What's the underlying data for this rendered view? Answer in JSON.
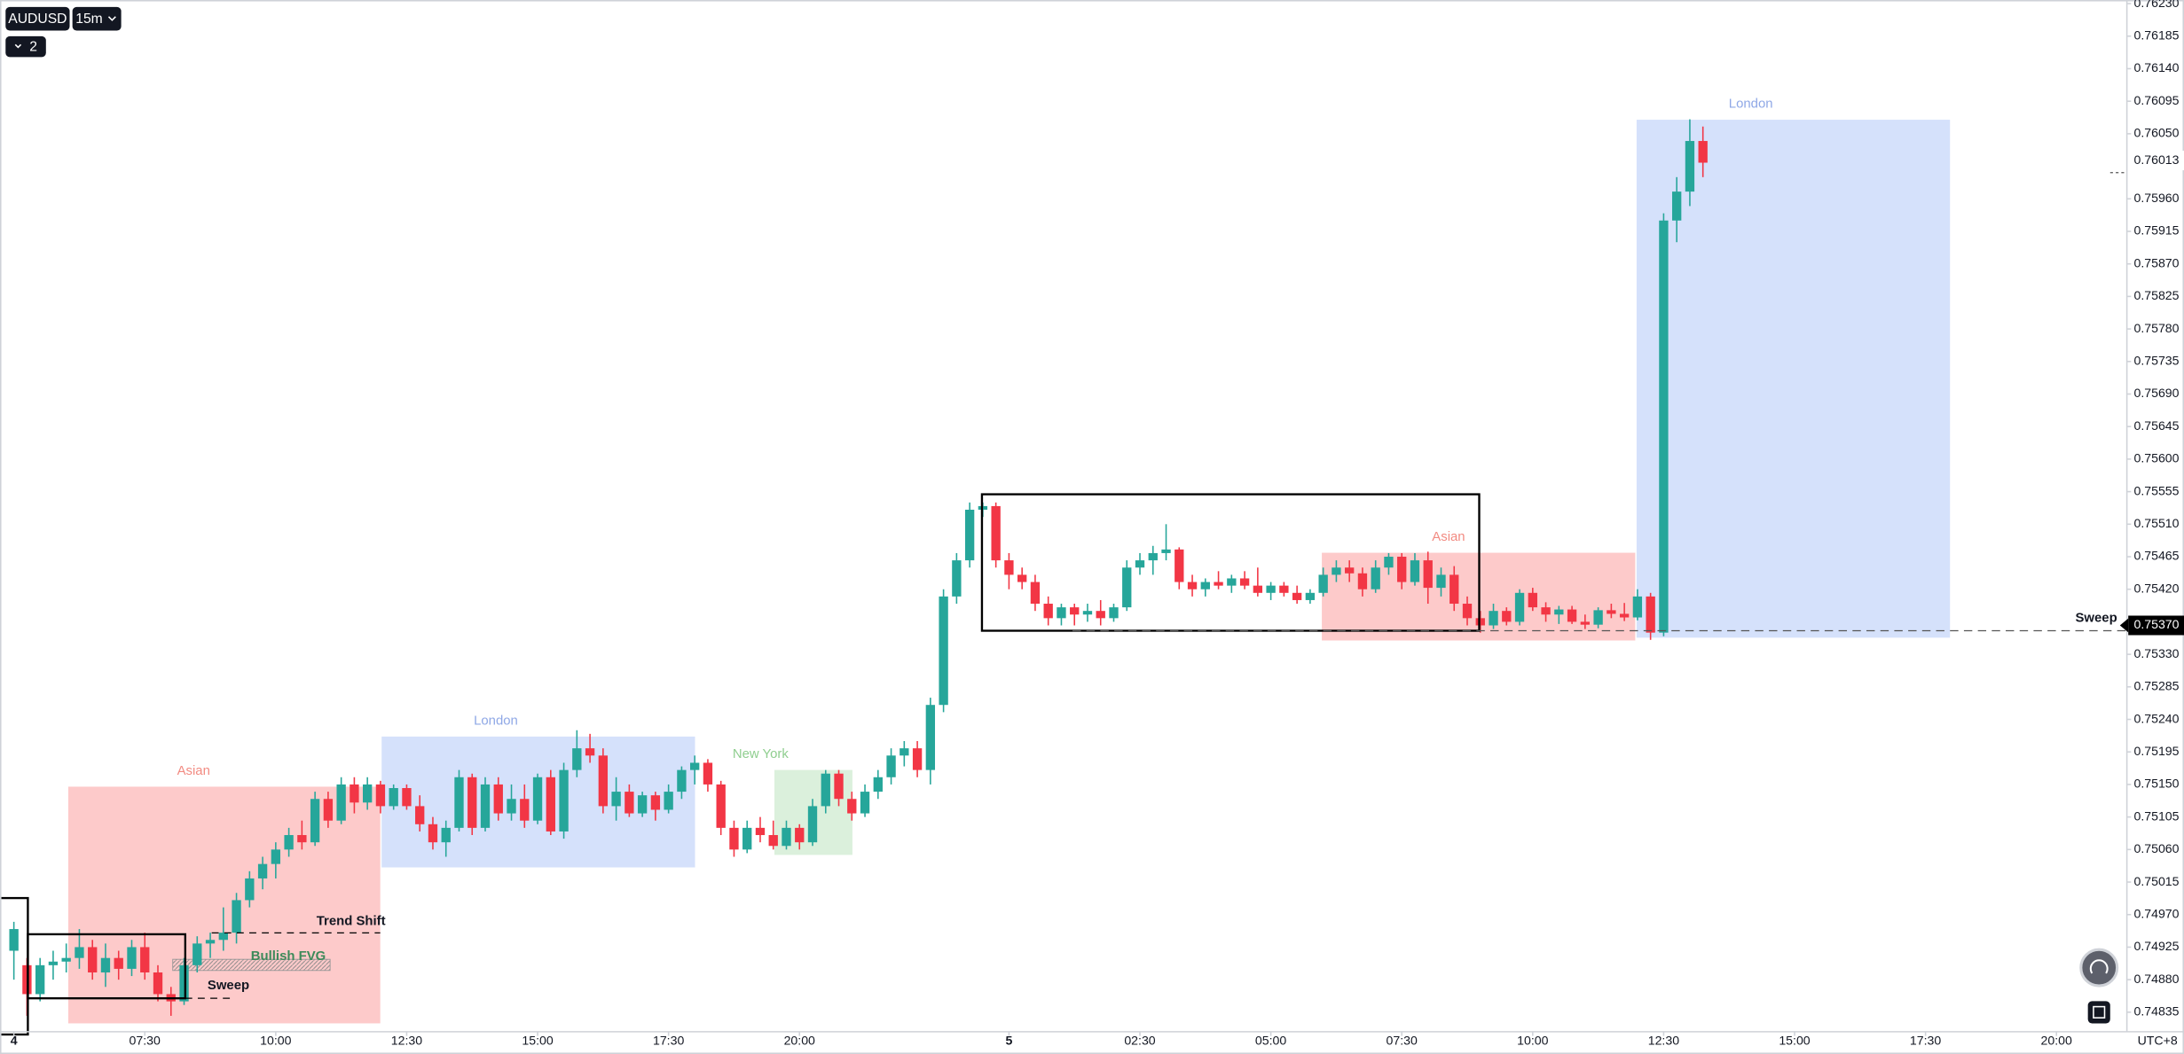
{
  "chart_data": {
    "type": "candlestick",
    "symbol": "AUDUSD",
    "interval": "15m",
    "indicator_count": "2",
    "timezone": "UTC+8",
    "up_color": "#26a69a",
    "down_color": "#f23645",
    "grid": false,
    "xlim": [
      -1.06,
      161.38
    ],
    "ylim": [
      0.74808,
      0.76235
    ],
    "xticks": [
      {
        "value": 0,
        "label": "4"
      },
      {
        "value": 10,
        "label": "07:30"
      },
      {
        "value": 20,
        "label": "10:00"
      },
      {
        "value": 30,
        "label": "12:30"
      },
      {
        "value": 40,
        "label": "15:00"
      },
      {
        "value": 50,
        "label": "17:30"
      },
      {
        "value": 60,
        "label": "20:00"
      },
      {
        "value": 76,
        "label": "5"
      },
      {
        "value": 86,
        "label": "02:30"
      },
      {
        "value": 96,
        "label": "05:00"
      },
      {
        "value": 106,
        "label": "07:30"
      },
      {
        "value": 116,
        "label": "10:00"
      },
      {
        "value": 126,
        "label": "12:30"
      },
      {
        "value": 136,
        "label": "15:00"
      },
      {
        "value": 146,
        "label": "17:30"
      },
      {
        "value": 156,
        "label": "20:00"
      }
    ],
    "yticks": [
      {
        "value": 0.7623,
        "label": "0.76230"
      },
      0.76185,
      {
        "value": 0.7614,
        "label": "0.76140"
      },
      0.76095,
      {
        "value": 0.7605,
        "label": "0.76050"
      },
      {
        "value": 0.7596,
        "label": "0.75960"
      },
      0.75915,
      {
        "value": 0.7587,
        "label": "0.75870"
      },
      0.75825,
      {
        "value": 0.7578,
        "label": "0.75780"
      },
      0.75735,
      {
        "value": 0.7569,
        "label": "0.75690"
      },
      0.75645,
      {
        "value": 0.756,
        "label": "0.75600"
      },
      0.75555,
      {
        "value": 0.7551,
        "label": "0.75510"
      },
      0.75465,
      {
        "value": 0.7542,
        "label": "0.75420"
      },
      {
        "value": 0.7533,
        "label": "0.75330"
      },
      0.75285,
      {
        "value": 0.7524,
        "label": "0.75240"
      },
      0.75195,
      {
        "value": 0.7515,
        "label": "0.75150"
      },
      0.75105,
      {
        "value": 0.7506,
        "label": "0.75060"
      },
      0.75015,
      {
        "value": 0.7497,
        "label": "0.74970"
      },
      0.74925,
      {
        "value": 0.7488,
        "label": "0.74880"
      },
      0.74835
    ],
    "price_labels": [
      0.76013,
      {
        "value": 0.7537,
        "label": "0.75370"
      }
    ],
    "annotations": {
      "sessions": [
        "Asian",
        "London",
        "New York",
        "Asian",
        "London"
      ],
      "trend_shift": "Trend Shift",
      "fvg": "Bullish FVG",
      "sweeps": [
        "Sweep",
        "Sweep"
      ]
    },
    "ohlc": [
      [
        0.7492,
        0.7496,
        0.7488,
        0.7495
      ],
      [
        0.749,
        0.7491,
        0.7483,
        0.7486
      ],
      [
        0.7486,
        0.7491,
        0.7485,
        0.749
      ],
      [
        0.749,
        0.7492,
        0.7488,
        0.74905
      ],
      [
        0.74905,
        0.7493,
        0.7489,
        0.7491
      ],
      [
        0.7491,
        0.7495,
        0.74895,
        0.74925
      ],
      [
        0.74925,
        0.74935,
        0.7488,
        0.7489
      ],
      [
        0.7489,
        0.7493,
        0.7487,
        0.7491
      ],
      [
        0.7491,
        0.7492,
        0.7488,
        0.74895
      ],
      [
        0.74895,
        0.74935,
        0.74885,
        0.74925
      ],
      [
        0.74925,
        0.74945,
        0.7488,
        0.7489
      ],
      [
        0.7489,
        0.749,
        0.7485,
        0.7486
      ],
      [
        0.7486,
        0.7487,
        0.7483,
        0.7485
      ],
      [
        0.7485,
        0.7491,
        0.74845,
        0.749
      ],
      [
        0.749,
        0.7494,
        0.7489,
        0.7493
      ],
      [
        0.7493,
        0.74945,
        0.7491,
        0.74935
      ],
      [
        0.74935,
        0.7498,
        0.7492,
        0.74945
      ],
      [
        0.74945,
        0.75,
        0.7493,
        0.7499
      ],
      [
        0.7499,
        0.7503,
        0.7498,
        0.7502
      ],
      [
        0.7502,
        0.7505,
        0.75005,
        0.7504
      ],
      [
        0.7504,
        0.7507,
        0.7502,
        0.7506
      ],
      [
        0.7506,
        0.7509,
        0.7505,
        0.7508
      ],
      [
        0.7508,
        0.751,
        0.7506,
        0.7507
      ],
      [
        0.7507,
        0.7514,
        0.75065,
        0.7513
      ],
      [
        0.7513,
        0.7514,
        0.7509,
        0.751
      ],
      [
        0.751,
        0.7516,
        0.75095,
        0.7515
      ],
      [
        0.7515,
        0.7516,
        0.7511,
        0.75125
      ],
      [
        0.75125,
        0.7516,
        0.75115,
        0.7515
      ],
      [
        0.7515,
        0.75155,
        0.7511,
        0.7512
      ],
      [
        0.7512,
        0.7515,
        0.75115,
        0.75145
      ],
      [
        0.75145,
        0.7515,
        0.75115,
        0.7512
      ],
      [
        0.7512,
        0.75135,
        0.75085,
        0.75095
      ],
      [
        0.75095,
        0.75105,
        0.7506,
        0.7507
      ],
      [
        0.7507,
        0.751,
        0.7505,
        0.7509
      ],
      [
        0.7509,
        0.7517,
        0.75085,
        0.7516
      ],
      [
        0.7516,
        0.75165,
        0.7508,
        0.7509
      ],
      [
        0.7509,
        0.7516,
        0.75085,
        0.7515
      ],
      [
        0.7515,
        0.7516,
        0.751,
        0.7511
      ],
      [
        0.7511,
        0.7515,
        0.751,
        0.7513
      ],
      [
        0.7513,
        0.7515,
        0.7509,
        0.751
      ],
      [
        0.751,
        0.75165,
        0.75095,
        0.7516
      ],
      [
        0.7516,
        0.7517,
        0.7508,
        0.75085
      ],
      [
        0.75085,
        0.7518,
        0.75075,
        0.7517
      ],
      [
        0.7517,
        0.75225,
        0.7516,
        0.752
      ],
      [
        0.752,
        0.7522,
        0.7518,
        0.7519
      ],
      [
        0.7519,
        0.752,
        0.7511,
        0.7512
      ],
      [
        0.7512,
        0.7516,
        0.751,
        0.7514
      ],
      [
        0.7514,
        0.7515,
        0.75105,
        0.7511
      ],
      [
        0.7511,
        0.7514,
        0.75105,
        0.75135
      ],
      [
        0.75135,
        0.7514,
        0.751,
        0.75115
      ],
      [
        0.75115,
        0.7515,
        0.7511,
        0.7514
      ],
      [
        0.7514,
        0.75175,
        0.7513,
        0.7517
      ],
      [
        0.7517,
        0.7519,
        0.7515,
        0.7518
      ],
      [
        0.7518,
        0.75185,
        0.7514,
        0.7515
      ],
      [
        0.7515,
        0.75155,
        0.7508,
        0.7509
      ],
      [
        0.7509,
        0.751,
        0.7505,
        0.7506
      ],
      [
        0.7506,
        0.751,
        0.75055,
        0.7509
      ],
      [
        0.7509,
        0.75105,
        0.7507,
        0.7508
      ],
      [
        0.7508,
        0.751,
        0.7506,
        0.75065
      ],
      [
        0.75065,
        0.751,
        0.7506,
        0.7509
      ],
      [
        0.7509,
        0.75095,
        0.7506,
        0.7507
      ],
      [
        0.7507,
        0.7513,
        0.75065,
        0.7512
      ],
      [
        0.7512,
        0.7517,
        0.7511,
        0.75165
      ],
      [
        0.75165,
        0.7517,
        0.7512,
        0.7513
      ],
      [
        0.7513,
        0.7514,
        0.751,
        0.7511
      ],
      [
        0.7511,
        0.7515,
        0.75105,
        0.7514
      ],
      [
        0.7514,
        0.7517,
        0.7513,
        0.7516
      ],
      [
        0.7516,
        0.752,
        0.7515,
        0.7519
      ],
      [
        0.7519,
        0.7521,
        0.75175,
        0.752
      ],
      [
        0.752,
        0.7521,
        0.7516,
        0.7517
      ],
      [
        0.7517,
        0.7527,
        0.7515,
        0.7526
      ],
      [
        0.7526,
        0.7542,
        0.7525,
        0.7541
      ],
      [
        0.7541,
        0.7547,
        0.754,
        0.7546
      ],
      [
        0.7546,
        0.7554,
        0.7545,
        0.7553
      ],
      [
        0.7553,
        0.7554,
        0.7552,
        0.75535
      ],
      [
        0.75535,
        0.7554,
        0.7545,
        0.7546
      ],
      [
        0.7546,
        0.7547,
        0.7542,
        0.7544
      ],
      [
        0.7544,
        0.7545,
        0.7542,
        0.7543
      ],
      [
        0.7543,
        0.7544,
        0.7539,
        0.754
      ],
      [
        0.754,
        0.7541,
        0.7537,
        0.7538
      ],
      [
        0.7538,
        0.754,
        0.7537,
        0.75395
      ],
      [
        0.75395,
        0.754,
        0.7537,
        0.75385
      ],
      [
        0.75385,
        0.754,
        0.75375,
        0.7539
      ],
      [
        0.7539,
        0.75405,
        0.7537,
        0.7538
      ],
      [
        0.7538,
        0.754,
        0.75375,
        0.75395
      ],
      [
        0.75395,
        0.7546,
        0.7539,
        0.7545
      ],
      [
        0.7545,
        0.7547,
        0.7544,
        0.7546
      ],
      [
        0.7546,
        0.7548,
        0.7544,
        0.7547
      ],
      [
        0.7547,
        0.7551,
        0.7546,
        0.75475
      ],
      [
        0.75475,
        0.75478,
        0.7542,
        0.7543
      ],
      [
        0.7543,
        0.7544,
        0.7541,
        0.7542
      ],
      [
        0.7542,
        0.75435,
        0.7541,
        0.7543
      ],
      [
        0.7543,
        0.75445,
        0.7542,
        0.75425
      ],
      [
        0.75425,
        0.7544,
        0.75415,
        0.75435
      ],
      [
        0.75435,
        0.75445,
        0.7542,
        0.75425
      ],
      [
        0.75425,
        0.7545,
        0.7541,
        0.75415
      ],
      [
        0.75415,
        0.7543,
        0.75405,
        0.75425
      ],
      [
        0.75425,
        0.7543,
        0.7541,
        0.75415
      ],
      [
        0.75415,
        0.75425,
        0.754,
        0.75405
      ],
      [
        0.75405,
        0.7542,
        0.754,
        0.75415
      ],
      [
        0.75415,
        0.7545,
        0.7541,
        0.7544
      ],
      [
        0.7544,
        0.7546,
        0.7543,
        0.7545
      ],
      [
        0.7545,
        0.7546,
        0.7543,
        0.75442
      ],
      [
        0.75442,
        0.7545,
        0.7541,
        0.7542
      ],
      [
        0.7542,
        0.7546,
        0.75415,
        0.7545
      ],
      [
        0.7545,
        0.7547,
        0.7544,
        0.75465
      ],
      [
        0.75465,
        0.7547,
        0.7542,
        0.7543
      ],
      [
        0.7543,
        0.7547,
        0.75425,
        0.7546
      ],
      [
        0.7546,
        0.75472,
        0.754,
        0.75422
      ],
      [
        0.75422,
        0.7545,
        0.7541,
        0.7544
      ],
      [
        0.7544,
        0.75452,
        0.7539,
        0.754
      ],
      [
        0.754,
        0.7541,
        0.7537,
        0.7538
      ],
      [
        0.7538,
        0.7539,
        0.7536,
        0.7537
      ],
      [
        0.7537,
        0.754,
        0.75365,
        0.7539
      ],
      [
        0.7539,
        0.75395,
        0.7537,
        0.75375
      ],
      [
        0.75375,
        0.7542,
        0.7537,
        0.75415
      ],
      [
        0.75415,
        0.75422,
        0.7539,
        0.75395
      ],
      [
        0.75395,
        0.75402,
        0.75375,
        0.75385
      ],
      [
        0.75385,
        0.75397,
        0.75372,
        0.75392
      ],
      [
        0.75392,
        0.75397,
        0.75372,
        0.75375
      ],
      [
        0.75375,
        0.75385,
        0.75365,
        0.75371
      ],
      [
        0.75371,
        0.75395,
        0.75366,
        0.75391
      ],
      [
        0.75391,
        0.754,
        0.7538,
        0.75386
      ],
      [
        0.75386,
        0.75401,
        0.75376,
        0.75381
      ],
      [
        0.75381,
        0.7542,
        0.75377,
        0.7541
      ],
      [
        0.7541,
        0.75415,
        0.7535,
        0.7536
      ],
      [
        0.7536,
        0.7594,
        0.75355,
        0.7593
      ],
      [
        0.7593,
        0.7599,
        0.759,
        0.7597
      ],
      [
        0.7597,
        0.7607,
        0.7595,
        0.7604
      ],
      [
        0.7604,
        0.7606,
        0.7599,
        0.7601
      ]
    ]
  }
}
